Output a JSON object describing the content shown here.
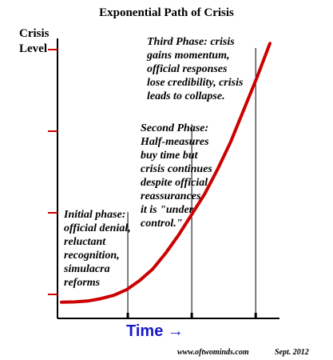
{
  "chart_data": {
    "type": "line",
    "title": "Exponential Path of Crisis",
    "ylabel": "Crisis Level",
    "xlabel": "Time →",
    "series": [
      {
        "values": [
          0.15,
          0.16,
          0.2,
          0.3,
          0.45,
          0.7,
          1.1,
          1.6,
          2.3,
          3.1,
          4.0,
          4.9,
          6.0,
          7.2,
          8.6,
          10.0,
          11.5
        ],
        "color": "#cc0000"
      }
    ],
    "x": [
      0,
      1,
      2,
      3,
      4,
      5,
      6,
      7,
      8,
      9,
      10,
      11,
      12,
      13,
      14,
      15,
      16
    ],
    "ylim": [
      0,
      12
    ],
    "y_ticks": 4,
    "x_ticks": 3,
    "phases": [
      "Initial phase:\nofficial denial,\nreluctant\nrecognition,\nsimulacra\nreforms",
      "Second Phase:\nHalf-measures\nbuy time but\ncrisis continues\ndespite official\nreassurances\nit is \"under\ncontrol.\"",
      "Third Phase: crisis\ngains momentum,\nofficial responses\nlose credibility, crisis\nleads to collapse."
    ]
  },
  "footer": {
    "site": "www.oftwominds.com",
    "date": "Sept. 2012"
  }
}
